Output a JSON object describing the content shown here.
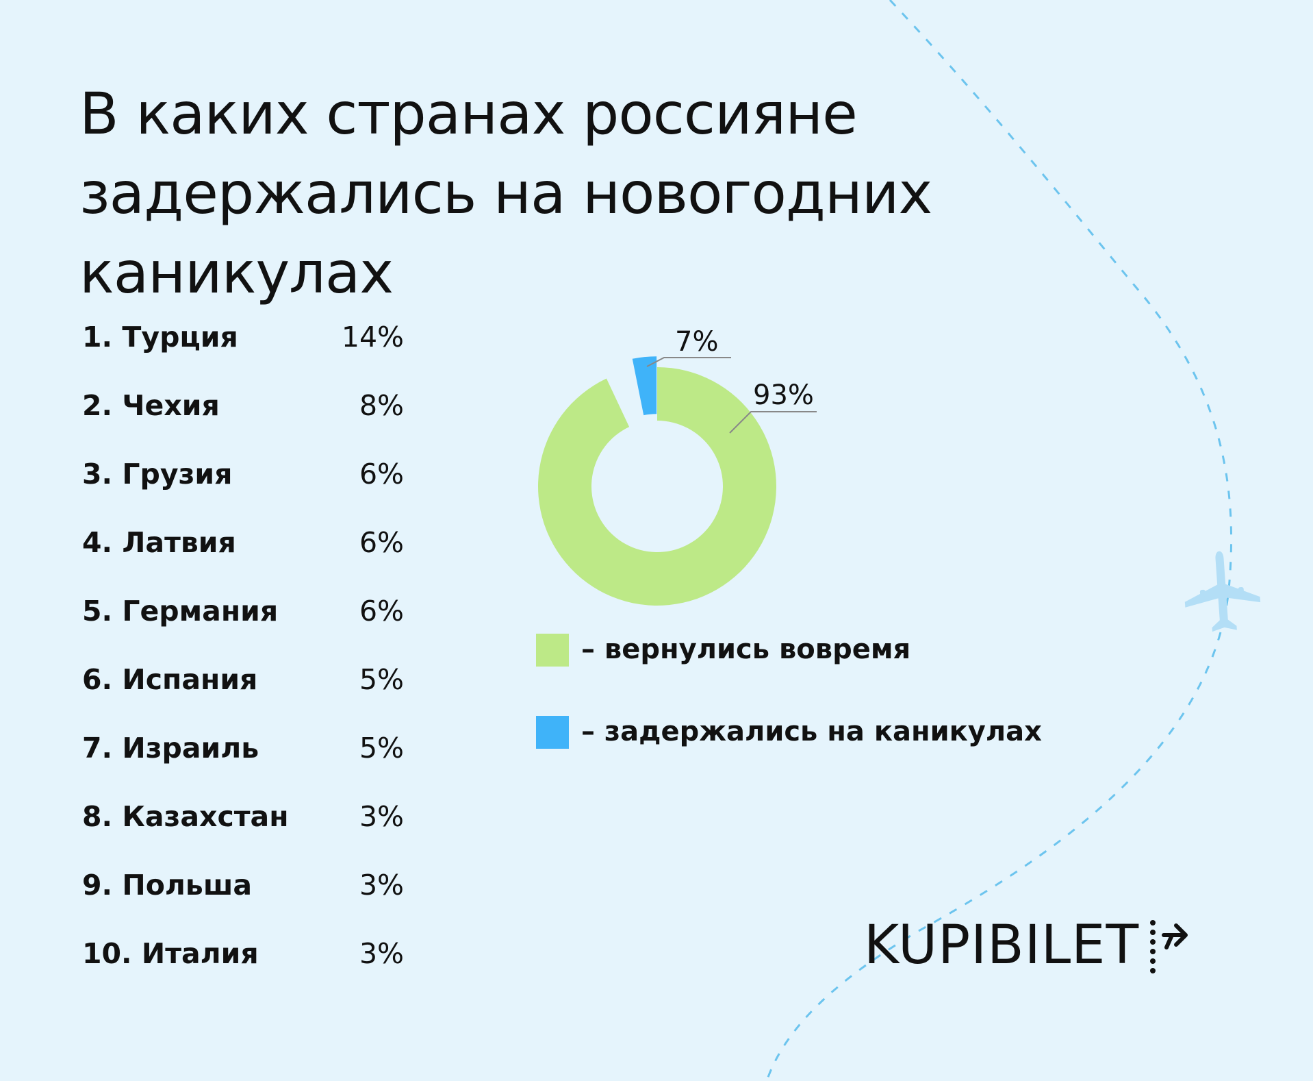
{
  "title": {
    "line1": "В каких странах россияне",
    "line2": "задержались на новогодних каникулах"
  },
  "ranking": [
    {
      "label": "1. Турция",
      "value": "14%"
    },
    {
      "label": "2. Чехия",
      "value": "8%"
    },
    {
      "label": "3. Грузия",
      "value": "6%"
    },
    {
      "label": "4. Латвия",
      "value": "6%"
    },
    {
      "label": "5. Германия",
      "value": "6%"
    },
    {
      "label": "6. Испания",
      "value": "5%"
    },
    {
      "label": "7. Израиль",
      "value": "5%"
    },
    {
      "label": "8. Казахстан",
      "value": "3%"
    },
    {
      "label": "9. Польша",
      "value": "3%"
    },
    {
      "label": "10. Италия",
      "value": "3%"
    }
  ],
  "chart_data": {
    "type": "pie",
    "variant": "donut",
    "slices": [
      {
        "label": "– вернулись вовремя",
        "value": 93,
        "value_label": "93%",
        "color": "#bde987"
      },
      {
        "label": "– задержались на каникулах",
        "value": 7,
        "value_label": "7%",
        "color": "#3fb3f9"
      }
    ],
    "legend_placement": "below"
  },
  "logo": {
    "text": "KUPIBILET"
  },
  "colors": {
    "background": "#e5f4fc",
    "route_line": "#6cc4ee",
    "plane": "#b3def6",
    "leader_line": "#888888"
  },
  "icons": {
    "plane": "airplane-icon",
    "logo_mark": "dotted-plane-logo-icon"
  }
}
